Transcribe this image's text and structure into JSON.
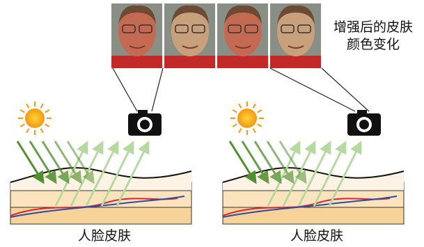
{
  "caption": [
    "增强后的皮肤",
    "颜色变化"
  ],
  "panels": [
    {
      "label": "人脸皮肤"
    },
    {
      "label": "人脸皮肤"
    }
  ]
}
